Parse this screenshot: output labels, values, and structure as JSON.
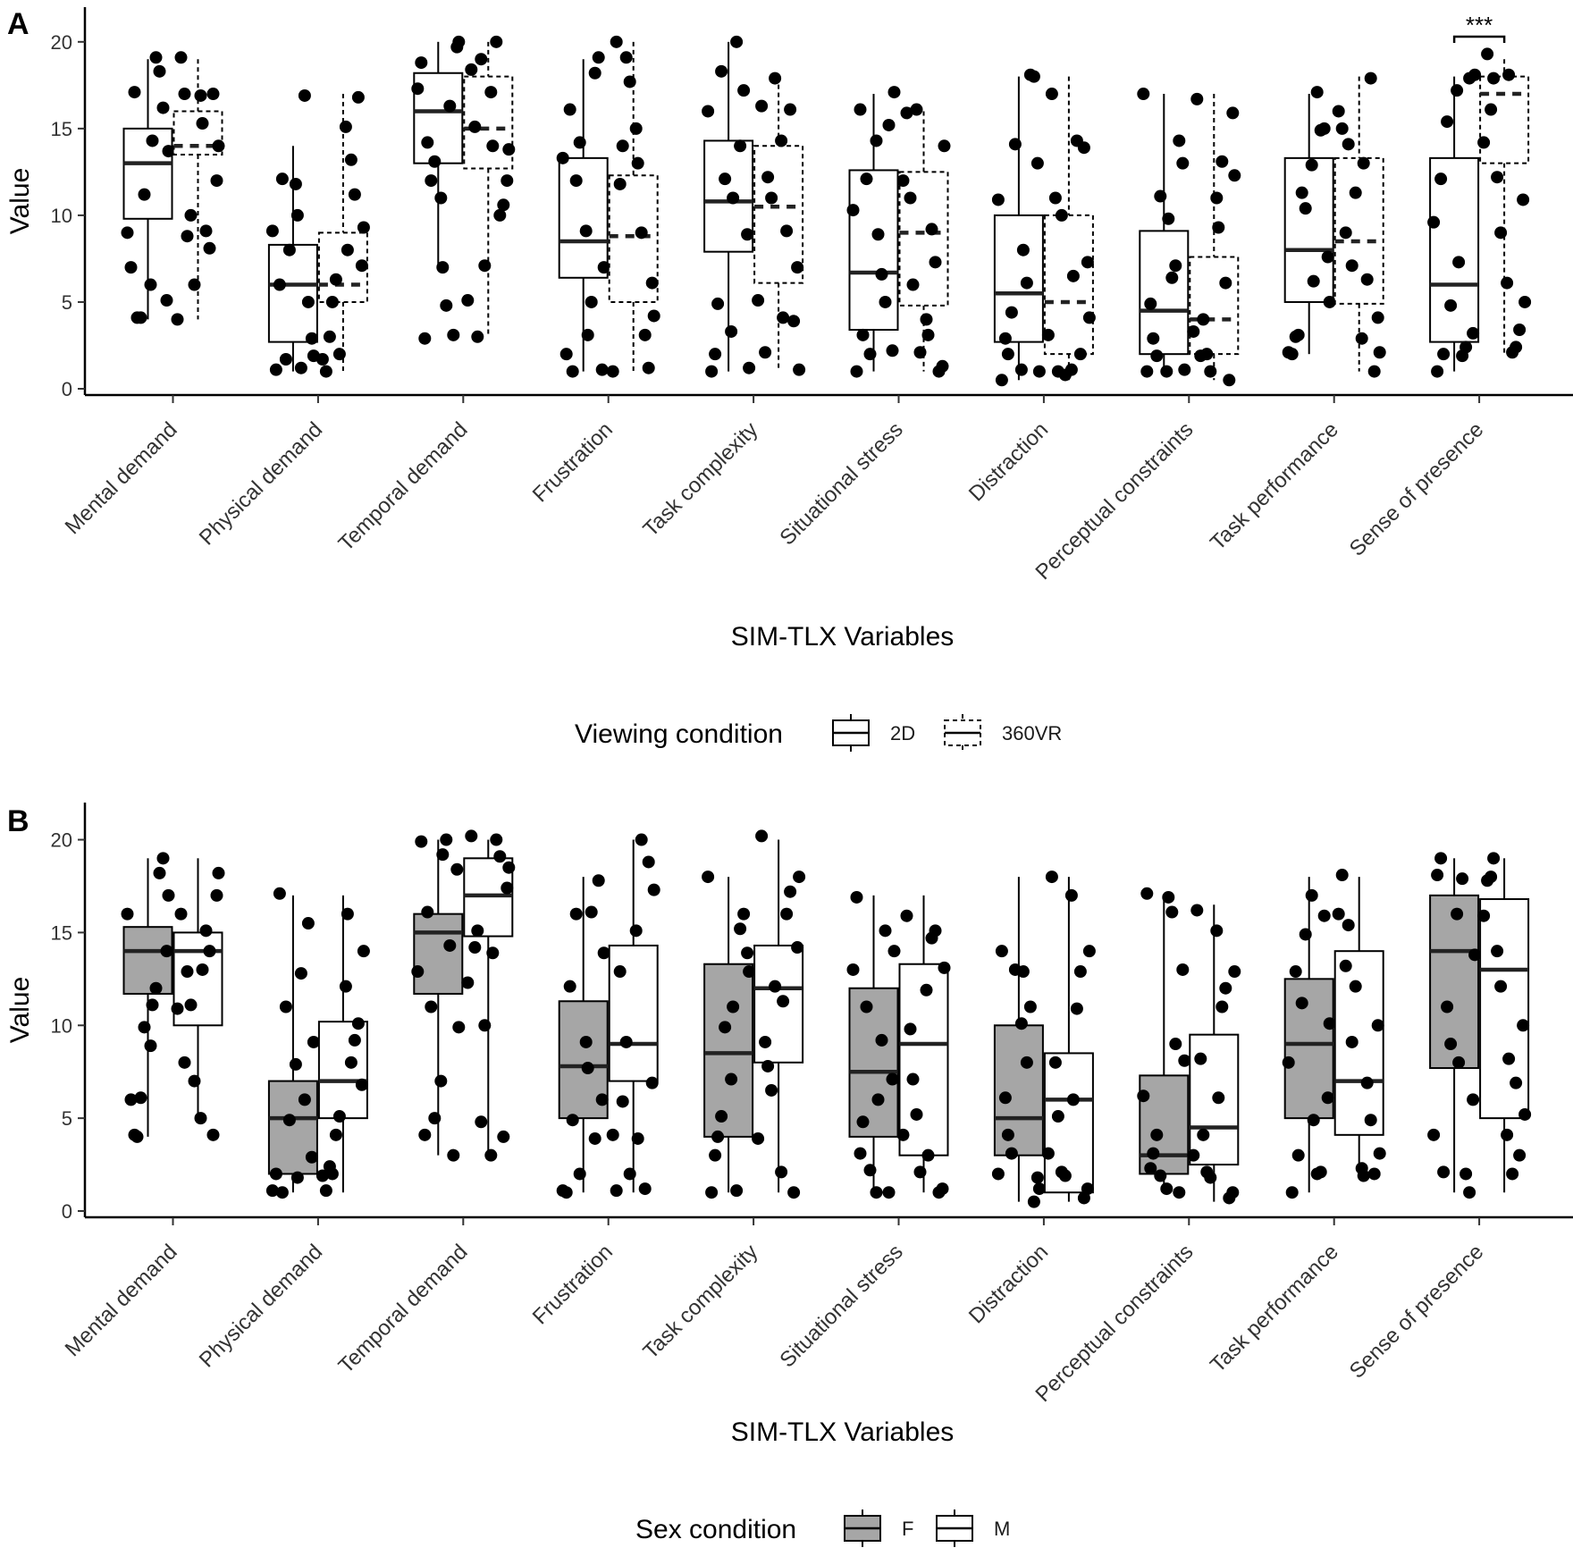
{
  "chart_data": [
    {
      "type": "box",
      "panel_label": "A",
      "title": "",
      "xlabel": "SIM-TLX Variables",
      "ylabel": "Value",
      "ylim": [
        0,
        22
      ],
      "yticks": [
        0,
        5,
        10,
        15,
        20
      ],
      "categories": [
        "Mental demand",
        "Physical demand",
        "Temporal demand",
        "Frustration",
        "Task complexity",
        "Situational stress",
        "Distraction",
        "Perceptual constraints",
        "Task performance",
        "Sense of presence"
      ],
      "legend": {
        "title": "Viewing condition",
        "entries": [
          {
            "label": "2D",
            "style": "solid",
            "fill": "#ffffff"
          },
          {
            "label": "360VR",
            "style": "dashed",
            "fill": "#ffffff"
          }
        ]
      },
      "annotations": [
        {
          "category": "Sense of presence",
          "text": "***",
          "level": 20.3
        }
      ],
      "series": [
        {
          "name": "2D",
          "style": "solid",
          "fill": "#ffffff",
          "boxes": [
            {
              "min": 4,
              "q1": 9.8,
              "median": 13,
              "q3": 15,
              "max": 19
            },
            {
              "min": 1,
              "q1": 2.7,
              "median": 6,
              "q3": 8.3,
              "max": 14
            },
            {
              "min": 7,
              "q1": 13,
              "median": 16,
              "q3": 18.2,
              "max": 20
            },
            {
              "min": 1,
              "q1": 6.4,
              "median": 8.5,
              "q3": 13.3,
              "max": 19
            },
            {
              "min": 1,
              "q1": 7.9,
              "median": 10.8,
              "q3": 14.3,
              "max": 20
            },
            {
              "min": 1,
              "q1": 3.4,
              "median": 6.7,
              "q3": 12.6,
              "max": 17
            },
            {
              "min": 0.5,
              "q1": 2.7,
              "median": 5.5,
              "q3": 10,
              "max": 18
            },
            {
              "min": 1,
              "q1": 2,
              "median": 4.5,
              "q3": 9.1,
              "max": 17
            },
            {
              "min": 2,
              "q1": 5,
              "median": 8,
              "q3": 13.3,
              "max": 17
            },
            {
              "min": 1,
              "q1": 2.7,
              "median": 6,
              "q3": 13.3,
              "max": 18
            }
          ],
          "points": [
            [
              7,
              16.2,
              4.1,
              13.7,
              11.2,
              19.1,
              9,
              6,
              5.1,
              17.1,
              18.3,
              4.1,
              14.3
            ],
            [
              1.1,
              5,
              12.1,
              1.9,
              8,
              1.2,
              9.1,
              11.8,
              2.9,
              6,
              16.9,
              1.7,
              10
            ],
            [
              18.8,
              3.1,
              14.2,
              20,
              13.1,
              4.8,
              17.3,
              11,
              19.7,
              2.9,
              16.3,
              12,
              7
            ],
            [
              2,
              19.1,
              1,
              7,
              14.2,
              5,
              13.3,
              9.1,
              1.1,
              16.1,
              18.2,
              12,
              3.1
            ],
            [
              1,
              17.2,
              4.9,
              1.2,
              12.1,
              20,
              16,
              3.3,
              8.9,
              2,
              14,
              18.3,
              11
            ],
            [
              1,
              15.2,
              3.1,
              17.1,
              2,
              6.6,
              10.3,
              14.3,
              2.2,
              16.1,
              5,
              12.1,
              8.9
            ],
            [
              0.5,
              18,
              2,
              1,
              14.1,
              6.1,
              10.9,
              1.1,
              13,
              2.9,
              18.1,
              4.4,
              8
            ],
            [
              1,
              14.3,
              2.9,
              1.1,
              11.1,
              6.4,
              17,
              1,
              13,
              4.9,
              7.1,
              1.9,
              9.8
            ],
            [
              2,
              15,
              3.1,
              5,
              10.4,
              17.1,
              2.1,
              12.9,
              7.6,
              3,
              14.9,
              11.3,
              6.2
            ],
            [
              1,
              17.9,
              2,
              18.1,
              4.8,
              1.9,
              9.6,
              17.2,
              3.2,
              12.1,
              2.4,
              15.4,
              7.3
            ]
          ]
        },
        {
          "name": "360VR",
          "style": "dashed",
          "fill": "#ffffff",
          "boxes": [
            {
              "min": 4,
              "q1": 13.5,
              "median": 14,
              "q3": 16,
              "max": 19
            },
            {
              "min": 1,
              "q1": 5,
              "median": 6,
              "q3": 9,
              "max": 17
            },
            {
              "min": 3,
              "q1": 12.7,
              "median": 15,
              "q3": 18,
              "max": 20
            },
            {
              "min": 1,
              "q1": 5,
              "median": 8.8,
              "q3": 12.3,
              "max": 20
            },
            {
              "min": 1,
              "q1": 6.1,
              "median": 10.5,
              "q3": 14,
              "max": 18
            },
            {
              "min": 1,
              "q1": 4.8,
              "median": 9,
              "q3": 12.5,
              "max": 16
            },
            {
              "min": 0.5,
              "q1": 2,
              "median": 5,
              "q3": 10,
              "max": 18
            },
            {
              "min": 0.5,
              "q1": 2,
              "median": 4,
              "q3": 7.6,
              "max": 17
            },
            {
              "min": 1,
              "q1": 4.9,
              "median": 8.5,
              "q3": 13.3,
              "max": 18
            },
            {
              "min": 2,
              "q1": 13,
              "median": 17,
              "q3": 18,
              "max": 19
            }
          ],
          "points": [
            [
              19.1,
              17,
              8.8,
              14,
              6,
              9.1,
              4,
              16.9,
              12,
              17,
              8.1,
              10,
              15.3
            ],
            [
              1,
              16.8,
              5,
              9.3,
              2,
              13.2,
              1.7,
              15.1,
              7.1,
              3,
              11.2,
              6.3,
              8
            ],
            [
              18.4,
              10.6,
              3,
              13.8,
              7.1,
              20,
              5.1,
              17.1,
              12,
              15.1,
              10,
              19,
              14
            ],
            [
              20,
              1.2,
              14,
              4.2,
              17.7,
              9,
              1,
              15,
              6.1,
              11.8,
              3.1,
              19.1,
              13
            ],
            [
              16.3,
              3.9,
              12.2,
              1.1,
              17.9,
              9.1,
              5.1,
              14.3,
              7,
              2.1,
              16.1,
              11,
              4.1
            ],
            [
              15.9,
              1,
              6,
              14,
              2.1,
              9.2,
              12,
              4,
              1.3,
              11,
              7.3,
              16.1,
              3.1
            ],
            [
              17,
              13.9,
              1,
              4.1,
              0.8,
              14.3,
              3.1,
              1.1,
              7.3,
              11,
              2,
              10,
              6.5
            ],
            [
              16.7,
              0.5,
              4,
              12.3,
              1,
              13.1,
              3.3,
              11,
              15.9,
              1.9,
              6.1,
              2,
              9.3
            ],
            [
              15,
              1,
              14.1,
              2.1,
              11.3,
              6.3,
              16,
              2.9,
              4.1,
              9,
              17.9,
              7.1,
              13
            ],
            [
              19.3,
              3.4,
              17.9,
              5,
              9,
              2.1,
              14.2,
              6.1,
              10.9,
              16.1,
              2.4,
              12.2,
              18.1
            ]
          ]
        }
      ]
    },
    {
      "type": "box",
      "panel_label": "B",
      "title": "",
      "xlabel": "SIM-TLX Variables",
      "ylabel": "Value",
      "ylim": [
        0,
        22
      ],
      "yticks": [
        0,
        5,
        10,
        15,
        20
      ],
      "categories": [
        "Mental demand",
        "Physical demand",
        "Temporal demand",
        "Frustration",
        "Task complexity",
        "Situational stress",
        "Distraction",
        "Perceptual constraints",
        "Task performance",
        "Sense of presence"
      ],
      "legend": {
        "title": "Sex condition",
        "entries": [
          {
            "label": "F",
            "style": "solid",
            "fill": "#a6a6a6"
          },
          {
            "label": "M",
            "style": "solid",
            "fill": "#ffffff"
          }
        ]
      },
      "annotations": [],
      "series": [
        {
          "name": "F",
          "style": "solid",
          "fill": "#a6a6a6",
          "boxes": [
            {
              "min": 4,
              "q1": 11.7,
              "median": 14,
              "q3": 15.3,
              "max": 19
            },
            {
              "min": 1,
              "q1": 2,
              "median": 5,
              "q3": 7,
              "max": 17
            },
            {
              "min": 3,
              "q1": 11.7,
              "median": 15,
              "q3": 16,
              "max": 20
            },
            {
              "min": 1,
              "q1": 5,
              "median": 7.8,
              "q3": 11.3,
              "max": 18
            },
            {
              "min": 1,
              "q1": 4,
              "median": 8.5,
              "q3": 13.3,
              "max": 18
            },
            {
              "min": 1,
              "q1": 4,
              "median": 7.5,
              "q3": 12,
              "max": 17
            },
            {
              "min": 0.5,
              "q1": 3,
              "median": 5,
              "q3": 10,
              "max": 18
            },
            {
              "min": 1,
              "q1": 2,
              "median": 3,
              "q3": 7.3,
              "max": 17
            },
            {
              "min": 1,
              "q1": 5,
              "median": 9,
              "q3": 12.5,
              "max": 18
            },
            {
              "min": 1,
              "q1": 7.7,
              "median": 14,
              "q3": 17,
              "max": 19
            }
          ],
          "points": [
            [
              6,
              19,
              4,
              17,
              9.9,
              12,
              16,
              8.9,
              14,
              4.1,
              18.2,
              6.1,
              11.1
            ],
            [
              2,
              15.5,
              1,
              9.1,
              4.9,
              12.8,
              1.1,
              7.9,
              2.9,
              17.1,
              6,
              11,
              1.8
            ],
            [
              19.9,
              3,
              16.1,
              9.9,
              5,
              20,
              12.9,
              7,
              18.4,
              4.1,
              14.3,
              11,
              19.2
            ],
            [
              1,
              17.8,
              4.9,
              13.9,
              2,
              16.1,
              1.1,
              9.1,
              6,
              12.1,
              3.9,
              16,
              7.7
            ],
            [
              1,
              16,
              4,
              12.9,
              9.9,
              1.1,
              18,
              7.1,
              13.9,
              3,
              15.2,
              5.1,
              11
            ],
            [
              16.9,
              1,
              4.8,
              14,
              2.2,
              9.2,
              13,
              1,
              7.1,
              3.1,
              15.1,
              11,
              6
            ],
            [
              14,
              0.5,
              4.1,
              1.2,
              13,
              8,
              2,
              10.1,
              1.8,
              6.1,
              11,
              3.1,
              12.9
            ],
            [
              17.1,
              1,
              3.1,
              8.1,
              1.9,
              16.1,
              6.2,
              1.2,
              13,
              2.3,
              9,
              4.1,
              16.9
            ],
            [
              1,
              15.9,
              3,
              10.1,
              14.9,
              2,
              8,
              17,
              6.1,
              12.9,
              2.1,
              11.2,
              4.9
            ],
            [
              18.1,
              1,
              2.1,
              13.8,
              9,
              17.9,
              4.1,
              16,
              6,
              19,
              2,
              11,
              8
            ]
          ]
        },
        {
          "name": "M",
          "style": "solid",
          "fill": "#ffffff",
          "boxes": [
            {
              "min": 5,
              "q1": 10,
              "median": 14,
              "q3": 15,
              "max": 19
            },
            {
              "min": 1,
              "q1": 5,
              "median": 7,
              "q3": 10.2,
              "max": 17
            },
            {
              "min": 3,
              "q1": 14.8,
              "median": 17,
              "q3": 19,
              "max": 20
            },
            {
              "min": 1,
              "q1": 7,
              "median": 9,
              "q3": 14.3,
              "max": 20
            },
            {
              "min": 1,
              "q1": 8,
              "median": 12,
              "q3": 14.3,
              "max": 20
            },
            {
              "min": 1,
              "q1": 3,
              "median": 9,
              "q3": 13.3,
              "max": 17
            },
            {
              "min": 0.5,
              "q1": 1,
              "median": 6,
              "q3": 8.5,
              "max": 18
            },
            {
              "min": 0.5,
              "q1": 2.5,
              "median": 4.5,
              "q3": 9.5,
              "max": 16.5
            },
            {
              "min": 2,
              "q1": 4.1,
              "median": 7,
              "q3": 14,
              "max": 18
            },
            {
              "min": 1,
              "q1": 5,
              "median": 13,
              "q3": 16.8,
              "max": 19
            }
          ],
          "points": [
            [
              16,
              4.1,
              12.9,
              18.2,
              7,
              15.1,
              10.9,
              5,
              17,
              8,
              14,
              11.1,
              13
            ],
            [
              1.1,
              10.1,
              2,
              14,
              5.1,
              8,
              1.9,
              12.1,
              6.8,
              2.4,
              9.2,
              4.1,
              16
            ],
            [
              20.2,
              4,
              15.1,
              18.5,
              10,
              20,
              12.3,
              3,
              17.4,
              14.2,
              19.1,
              4.8,
              13.9
            ],
            [
              1.1,
              18.8,
              5.9,
              17.3,
              2,
              20,
              4.1,
              15.1,
              6.9,
              12.9,
              1.2,
              9.1,
              3.9
            ],
            [
              20.2,
              1,
              7.8,
              18,
              12.1,
              16,
              3.9,
              2.1,
              14.2,
              9.1,
              17.2,
              6.5,
              11.3
            ],
            [
              15.9,
              1,
              7.1,
              13.1,
              2.1,
              14.7,
              4.1,
              11.9,
              1.2,
              9.8,
              15.1,
              5.2,
              3
            ],
            [
              18,
              0.7,
              5.1,
              14,
              1.9,
              10.9,
              3.1,
              17,
              1.2,
              8,
              12.9,
              2.1,
              6
            ],
            [
              16.2,
              0.7,
              4.1,
              12.9,
              1.8,
              11,
              3,
              15.1,
              1,
              8.2,
              12,
              2.1,
              6.1
            ],
            [
              18.1,
              2,
              15.4,
              3.1,
              12.1,
              6.9,
              16,
              2.3,
              10,
              13.2,
              4.9,
              9.1,
              1.9
            ],
            [
              17.8,
              3,
              19,
              5.2,
              12.1,
              2,
              15.9,
              4.1,
              10,
              18,
              6.9,
              14,
              8.2
            ]
          ]
        }
      ]
    }
  ]
}
